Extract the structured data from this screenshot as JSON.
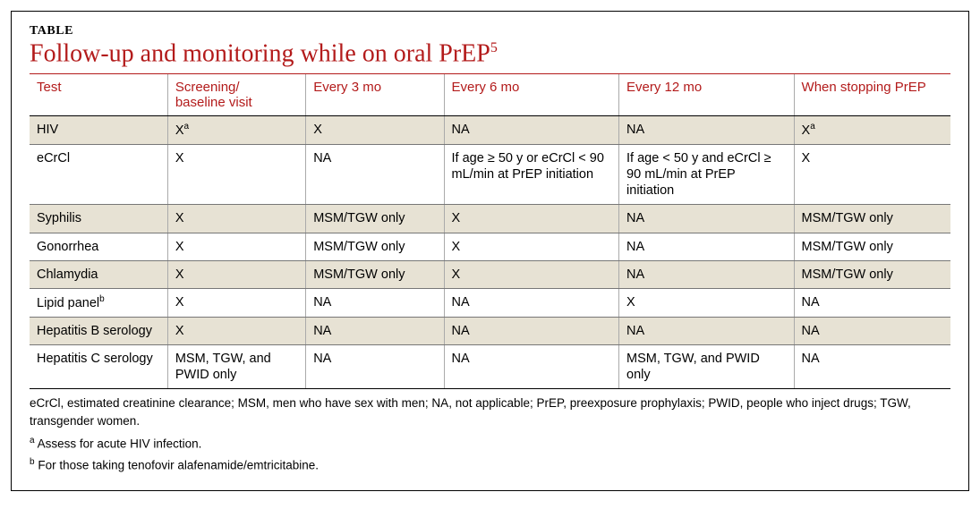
{
  "colors": {
    "accent": "#b31b1b",
    "shade_bg": "#e7e2d4",
    "plain_bg": "#ffffff",
    "border_dark": "#000000",
    "border_light": "#777777"
  },
  "layout": {
    "col_widths_pct": [
      15,
      15,
      15,
      19,
      19,
      17
    ]
  },
  "heading_label": "TABLE",
  "title_text": "Follow-up and monitoring while on oral PrEP",
  "title_sup": "5",
  "columns": [
    "Test",
    "Screening/\nbaseline visit",
    "Every 3 mo",
    "Every 6 mo",
    "Every 12 mo",
    "When stopping PrEP"
  ],
  "rows": [
    {
      "shade": true,
      "cells": [
        {
          "t": "HIV"
        },
        {
          "t": "X",
          "sup": "a"
        },
        {
          "t": "X"
        },
        {
          "t": "NA"
        },
        {
          "t": "NA"
        },
        {
          "t": "X",
          "sup": "a"
        }
      ]
    },
    {
      "shade": false,
      "cells": [
        {
          "t": "eCrCl"
        },
        {
          "t": "X"
        },
        {
          "t": "NA"
        },
        {
          "t": "If age ≥ 50 y or eCrCl < 90 mL/min at PrEP initiation"
        },
        {
          "t": "If age < 50 y and eCrCl ≥ 90 mL/min at PrEP initiation"
        },
        {
          "t": "X"
        }
      ]
    },
    {
      "shade": true,
      "cells": [
        {
          "t": "Syphilis"
        },
        {
          "t": "X"
        },
        {
          "t": "MSM/TGW only"
        },
        {
          "t": "X"
        },
        {
          "t": "NA"
        },
        {
          "t": "MSM/TGW only"
        }
      ]
    },
    {
      "shade": false,
      "cells": [
        {
          "t": "Gonorrhea"
        },
        {
          "t": "X"
        },
        {
          "t": "MSM/TGW only"
        },
        {
          "t": "X"
        },
        {
          "t": "NA"
        },
        {
          "t": "MSM/TGW only"
        }
      ]
    },
    {
      "shade": true,
      "cells": [
        {
          "t": "Chlamydia"
        },
        {
          "t": "X"
        },
        {
          "t": "MSM/TGW only"
        },
        {
          "t": "X"
        },
        {
          "t": "NA"
        },
        {
          "t": "MSM/TGW only"
        }
      ]
    },
    {
      "shade": false,
      "cells": [
        {
          "t": "Lipid panel",
          "sup": "b"
        },
        {
          "t": "X"
        },
        {
          "t": "NA"
        },
        {
          "t": "NA"
        },
        {
          "t": "X"
        },
        {
          "t": "NA"
        }
      ]
    },
    {
      "shade": true,
      "cells": [
        {
          "t": "Hepatitis B serology"
        },
        {
          "t": "X"
        },
        {
          "t": "NA"
        },
        {
          "t": "NA"
        },
        {
          "t": "NA"
        },
        {
          "t": "NA"
        }
      ]
    },
    {
      "shade": false,
      "cells": [
        {
          "t": "Hepatitis C serology"
        },
        {
          "t": "MSM, TGW, and PWID only"
        },
        {
          "t": "NA"
        },
        {
          "t": "NA"
        },
        {
          "t": "MSM, TGW, and PWID only"
        },
        {
          "t": "NA"
        }
      ]
    }
  ],
  "footnotes": {
    "abbrev": "eCrCl, estimated creatinine clearance; MSM, men who have sex with men; NA, not applicable; PrEP, preexposure prophylaxis; PWID, people who inject drugs; TGW, transgender women.",
    "a": "Assess for acute HIV infection.",
    "b": "For those taking tenofovir alafenamide/emtricitabine."
  }
}
